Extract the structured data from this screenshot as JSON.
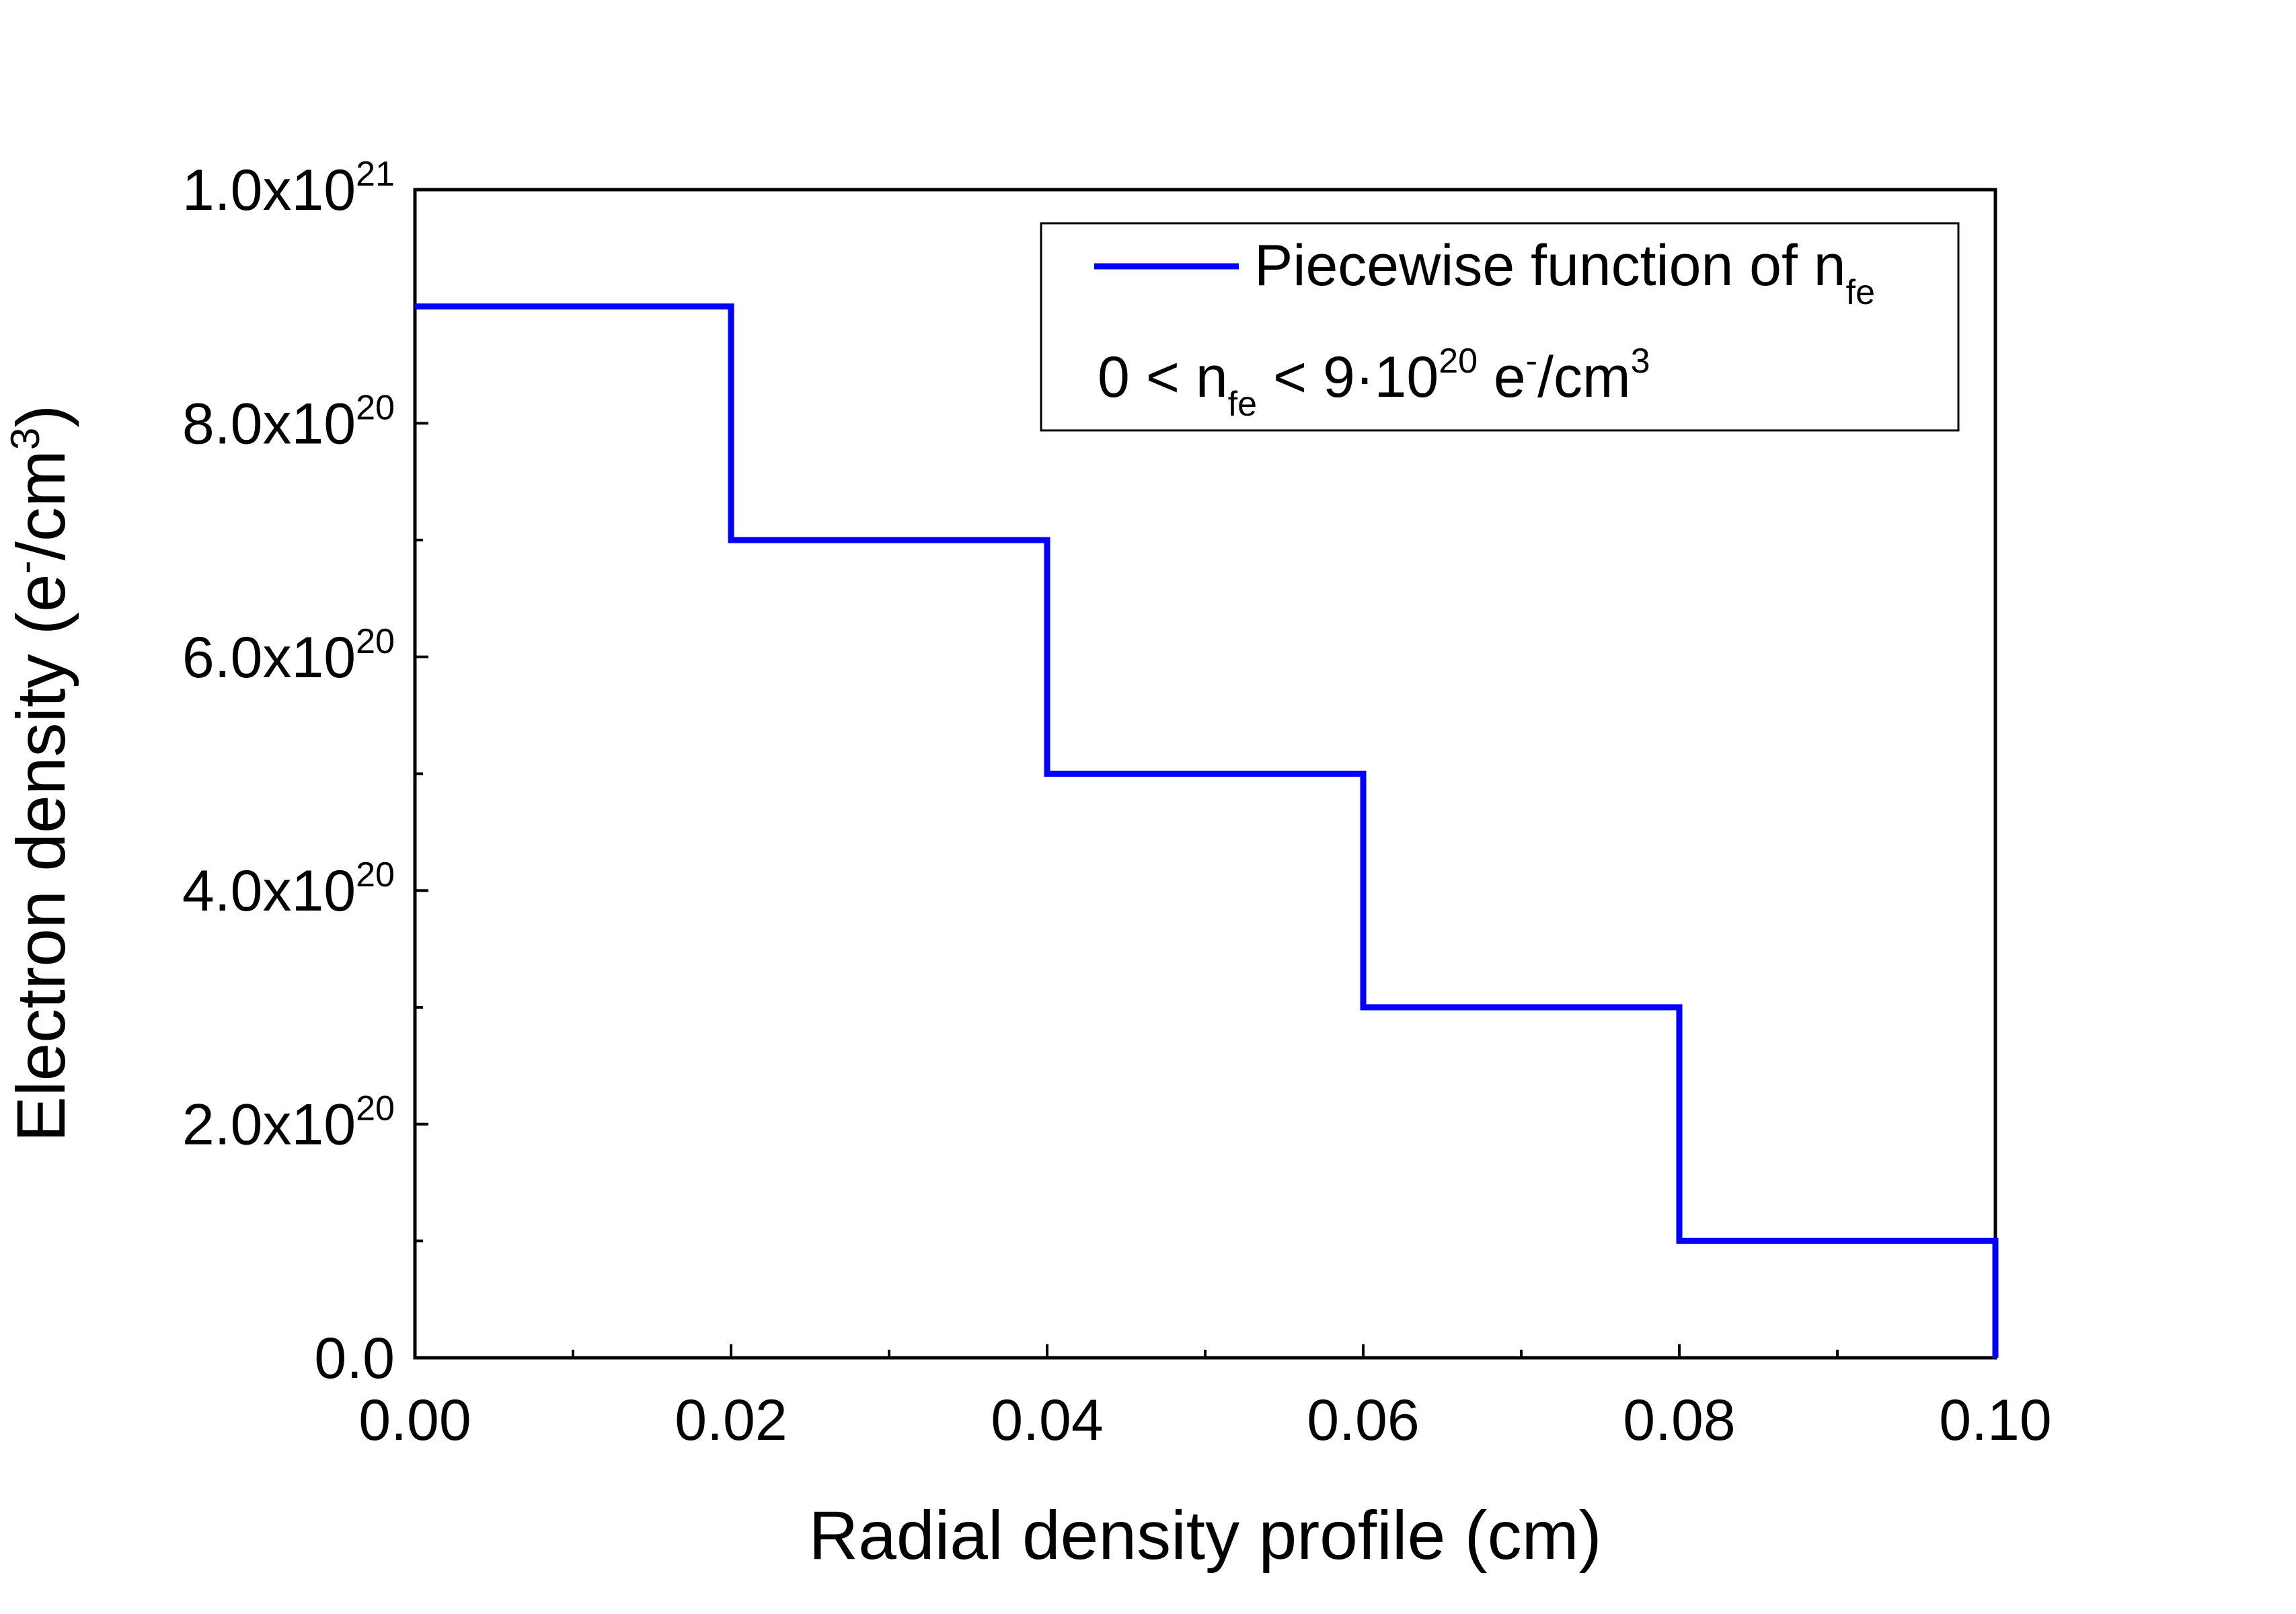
{
  "chart_data": {
    "type": "line",
    "step": true,
    "xlabel": "Radial density profile (cm)",
    "ylabel": {
      "base": "Electron density (e",
      "sup1": "-",
      "mid": "/cm",
      "sup2": "3",
      "end": ")"
    },
    "xlim": [
      0,
      0.1
    ],
    "ylim": [
      0,
      1e+21
    ],
    "x_ticks": [
      {
        "value": 0.0,
        "label": "0.00"
      },
      {
        "value": 0.02,
        "label": "0.02"
      },
      {
        "value": 0.04,
        "label": "0.04"
      },
      {
        "value": 0.06,
        "label": "0.06"
      },
      {
        "value": 0.08,
        "label": "0.08"
      },
      {
        "value": 0.1,
        "label": "0.10"
      }
    ],
    "x_minor_ticks": [
      0.01,
      0.03,
      0.05,
      0.07,
      0.09
    ],
    "y_ticks": [
      {
        "value": 0,
        "base": "0.0",
        "exp": ""
      },
      {
        "value": 2e+20,
        "base": "2.0x10",
        "exp": "20"
      },
      {
        "value": 4e+20,
        "base": "4.0x10",
        "exp": "20"
      },
      {
        "value": 6e+20,
        "base": "6.0x10",
        "exp": "20"
      },
      {
        "value": 8e+20,
        "base": "8.0x10",
        "exp": "20"
      },
      {
        "value": 1e+21,
        "base": "1.0x10",
        "exp": "21"
      }
    ],
    "y_minor_ticks": [
      1e+20,
      3e+20,
      5e+20,
      7e+20,
      9e+20
    ],
    "series": [
      {
        "name": "Piecewise function of n_fe",
        "color": "#0000ff",
        "x": [
          0.0,
          0.02,
          0.02,
          0.04,
          0.04,
          0.06,
          0.06,
          0.08,
          0.08,
          0.1,
          0.1
        ],
        "y": [
          9e+20,
          9e+20,
          7e+20,
          7e+20,
          5e+20,
          5e+20,
          3e+20,
          3e+20,
          1e+20,
          1e+20,
          0
        ]
      }
    ],
    "legend": {
      "position": "top-right",
      "line1": {
        "text": "Piecewise function of n",
        "sub": "fe"
      },
      "line2": {
        "a": "0 < n",
        "sub": "fe",
        "b": " < 9·10",
        "sup1": "20",
        "c": " e",
        "sup2": "-",
        "d": "/cm",
        "sup3": "3"
      }
    }
  }
}
